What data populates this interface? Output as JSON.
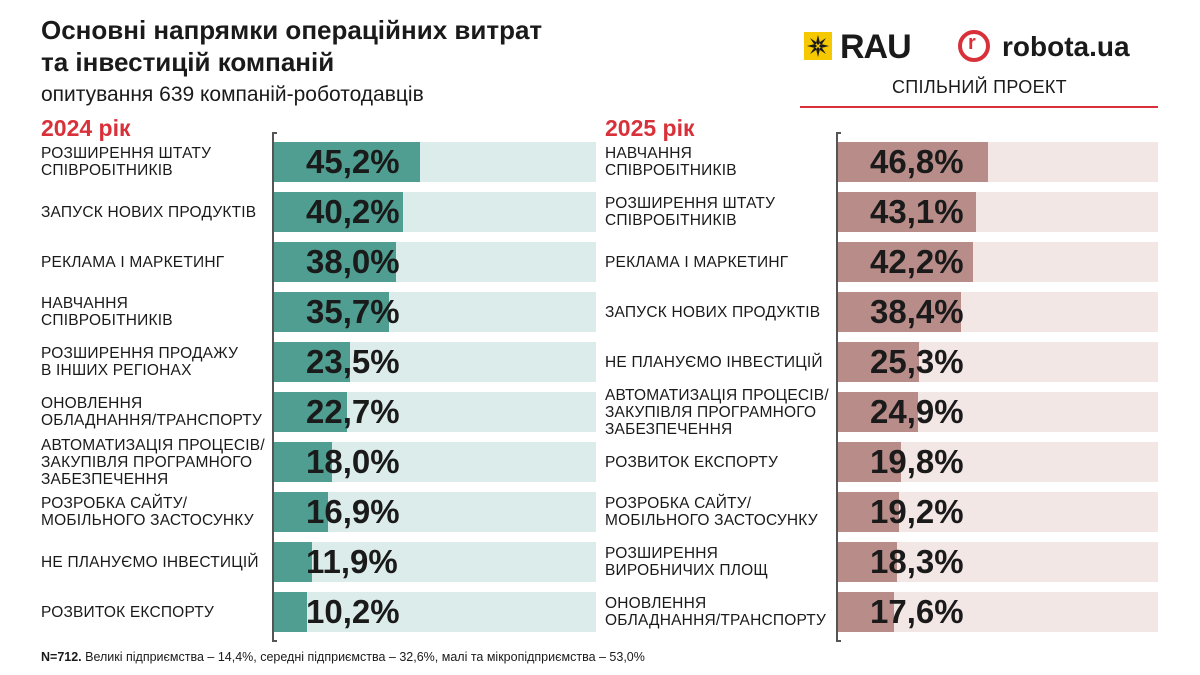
{
  "header": {
    "title_line1": "Основні напрямки операційних витрат",
    "title_line2": "та інвестицій компаній",
    "subtitle": "опитування 639 компаній-роботодавців"
  },
  "logos": {
    "rau": "RAU",
    "robota_mark": "r",
    "robota": "robota.ua",
    "joint_project": "СПІЛЬНИЙ ПРОЕКТ"
  },
  "colors": {
    "accent_red": "#d9313a",
    "left_fill": "#4f9e91",
    "left_track": "#dcecea",
    "right_fill": "#b88d89",
    "right_track": "#f3e7e6"
  },
  "chart_data": [
    {
      "type": "bar",
      "orientation": "horizontal",
      "title": "2024 рік",
      "unit": "%",
      "xlim": [
        0,
        100
      ],
      "categories": [
        "Розширення штату співробітників",
        "Запуск нових продуктів",
        "Реклама і маркетинг",
        "Навчання співробітників",
        "Розширення продажу в інших регіонах",
        "Оновлення обладнання/транспорту",
        "Автоматизація процесів/ закупівля програмного забезпечення",
        "Розробка сайту/ мобільного застосунку",
        "Не плануємо інвестицій",
        "Розвиток експорту"
      ],
      "values": [
        45.2,
        40.2,
        38.0,
        35.7,
        23.5,
        22.7,
        18.0,
        16.9,
        11.9,
        10.2
      ],
      "value_labels": [
        "45,2%",
        "40,2%",
        "38,0%",
        "35,7%",
        "23,5%",
        "22,7%",
        "18,0%",
        "16,9%",
        "11,9%",
        "10,2%"
      ],
      "label_lines": [
        [
          "Розширення штату",
          "співробітників"
        ],
        [
          "Запуск нових продуктів"
        ],
        [
          "Реклама і маркетинг"
        ],
        [
          "Навчання",
          "співробітників"
        ],
        [
          "Розширення продажу",
          "в інших регіонах"
        ],
        [
          "Оновлення",
          "обладнання/транспорту"
        ],
        [
          "Автоматизація процесів/",
          "закупівля програмного",
          "забезпечення"
        ],
        [
          "Розробка сайту/",
          "мобільного застосунку"
        ],
        [
          "Не плануємо інвестицій"
        ],
        [
          "Розвиток експорту"
        ]
      ]
    },
    {
      "type": "bar",
      "orientation": "horizontal",
      "title": "2025 рік",
      "unit": "%",
      "xlim": [
        0,
        100
      ],
      "categories": [
        "Навчання співробітників",
        "Розширення штату співробітників",
        "Реклама і маркетинг",
        "Запуск нових продуктів",
        "Не плануємо інвестицій",
        "Автоматизація процесів/ закупівля програмного забезпечення",
        "Розвиток експорту",
        "Розробка сайту/ мобільного застосунку",
        "Розширення виробничих площ",
        "Оновлення обладнання/транспорту"
      ],
      "values": [
        46.8,
        43.1,
        42.2,
        38.4,
        25.3,
        24.9,
        19.8,
        19.2,
        18.3,
        17.6
      ],
      "value_labels": [
        "46,8%",
        "43,1%",
        "42,2%",
        "38,4%",
        "25,3%",
        "24,9%",
        "19,8%",
        "19,2%",
        "18,3%",
        "17,6%"
      ],
      "label_lines": [
        [
          "Навчання",
          "співробітників"
        ],
        [
          "Розширення штату",
          "співробітників"
        ],
        [
          "Реклама і маркетинг"
        ],
        [
          "Запуск нових продуктів"
        ],
        [
          "Не плануємо інвестицій"
        ],
        [
          "Автоматизація процесів/",
          "закупівля програмного",
          "забезпечення"
        ],
        [
          "Розвиток експорту"
        ],
        [
          "Розробка сайту/",
          "мобільного застосунку"
        ],
        [
          "Розширення",
          "виробничих площ"
        ],
        [
          "Оновлення",
          "обладнання/транспорту"
        ]
      ]
    }
  ],
  "footnote": {
    "bold": "N=712.",
    "text": " Великі підприємства – 14,4%, середні підприємства – 32,6%, малі та мікропідприємства – 53,0%"
  }
}
